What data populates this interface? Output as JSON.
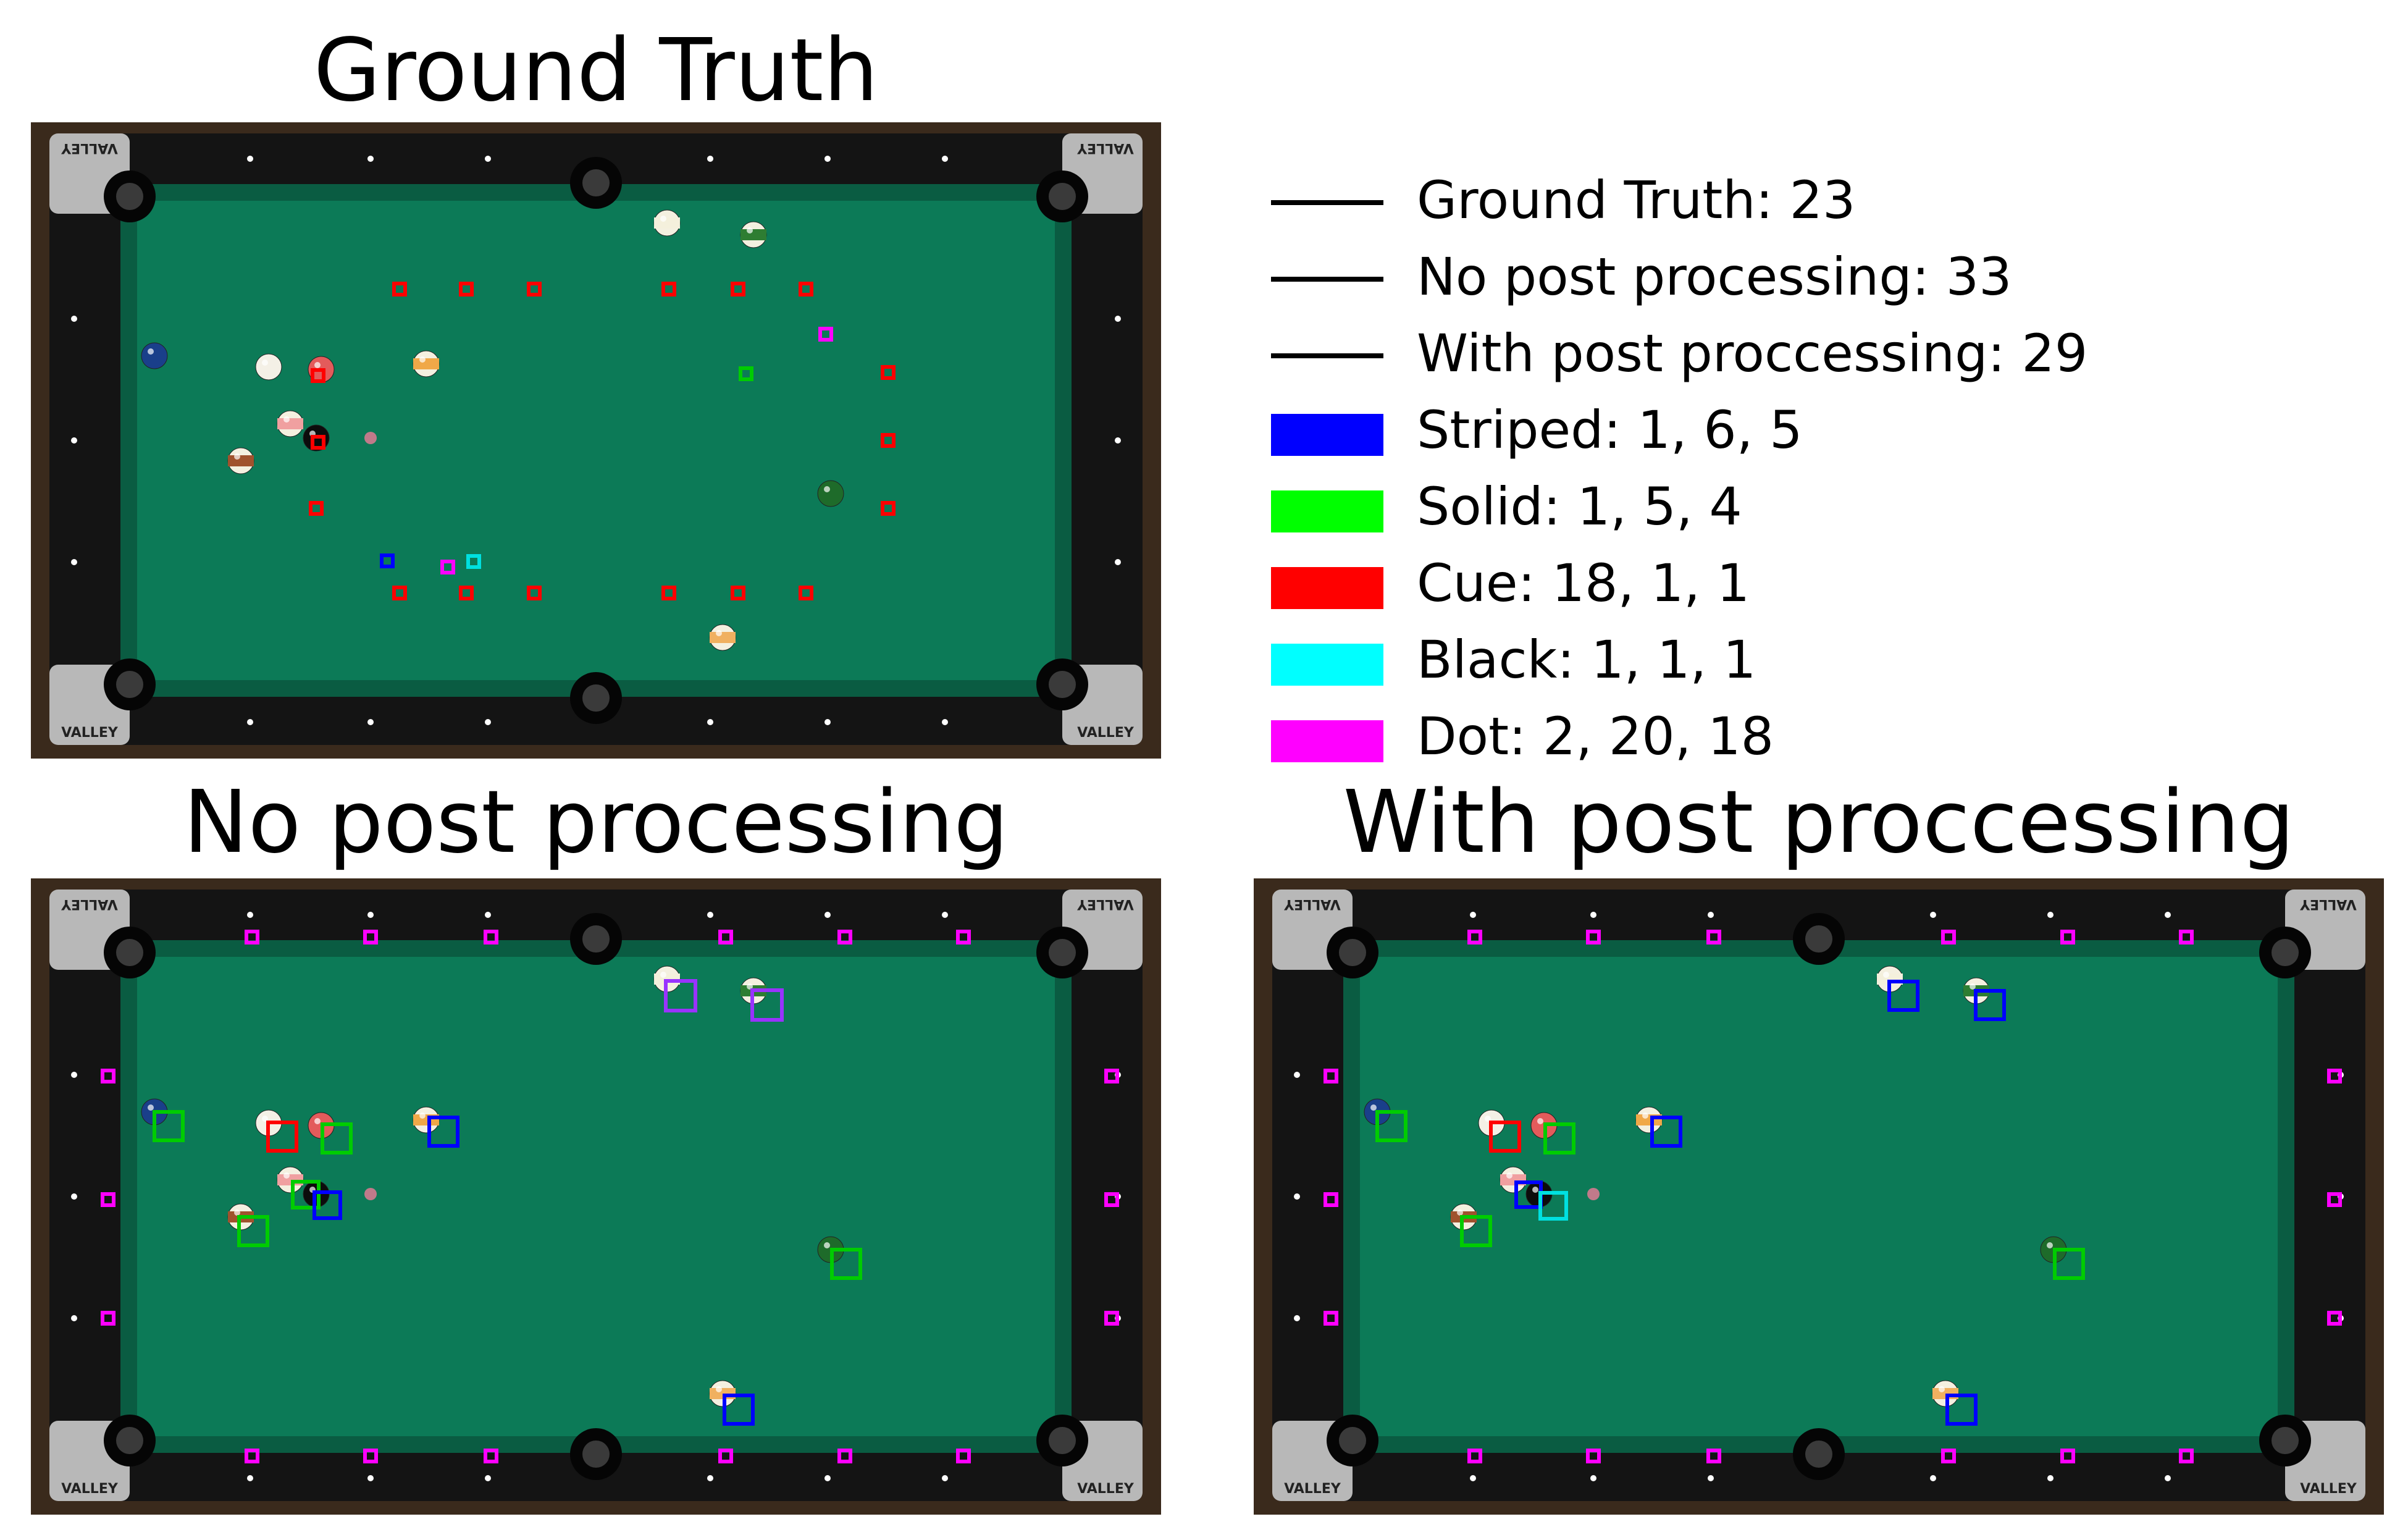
{
  "titles": {
    "ground_truth": "Ground Truth",
    "no_post": "No post processing",
    "with_post": "With post proccessing"
  },
  "table_brand": "VALLEY",
  "legend": [
    {
      "kind": "line",
      "label": "Ground Truth: 23",
      "color": "#000000"
    },
    {
      "kind": "line",
      "label": "No post processing: 33",
      "color": "#000000"
    },
    {
      "kind": "line",
      "label": "With post proccessing: 29",
      "color": "#000000"
    },
    {
      "kind": "patch",
      "label": "Striped: 1, 6, 5",
      "color": "#0000ff"
    },
    {
      "kind": "patch",
      "label": "Solid: 1, 5, 4",
      "color": "#00ff00"
    },
    {
      "kind": "patch",
      "label": "Cue: 18, 1, 1",
      "color": "#ff0000"
    },
    {
      "kind": "patch",
      "label": "Black: 1, 1, 1",
      "color": "#00ffff"
    },
    {
      "kind": "patch",
      "label": "Dot: 2, 20, 18",
      "color": "#ff00ff"
    }
  ],
  "colors": {
    "felt": "#0c7a57",
    "cushion": "#0a5c42",
    "rail": "#141414",
    "corner": "#b8b8b8",
    "striped": "#0000ff",
    "solid": "#00cc00",
    "cue": "#ff0000",
    "black": "#00e0e0",
    "dot": "#ff00ff"
  }
}
